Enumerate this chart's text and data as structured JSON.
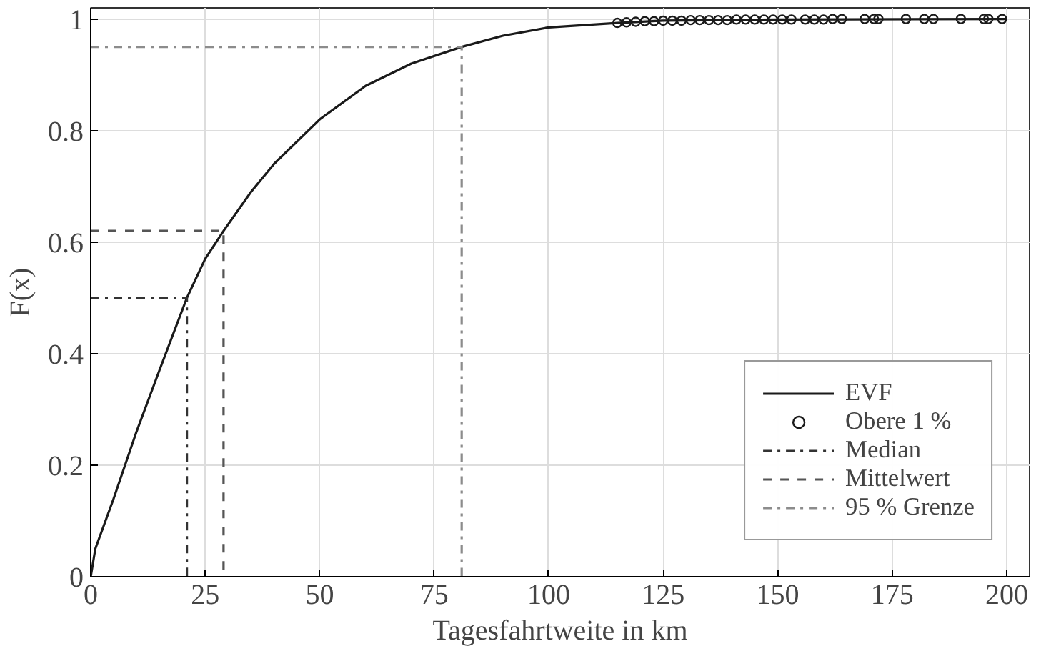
{
  "chart_data": {
    "type": "line",
    "xlabel": "Tagesfahrtweite in km",
    "ylabel": "F(x)",
    "xlim": [
      0,
      205
    ],
    "ylim": [
      0,
      1.02
    ],
    "xticks": [
      0,
      25,
      50,
      75,
      100,
      125,
      150,
      175,
      200
    ],
    "yticks": [
      0,
      0.2,
      0.4,
      0.6,
      0.8,
      1
    ],
    "grid": true,
    "legend": "bottom right",
    "series": [
      {
        "name": "EVF",
        "type": "line",
        "color": "#1a1a1a",
        "line_style": "solid",
        "x": [
          0,
          1,
          5,
          10,
          15,
          21,
          25,
          29,
          35,
          40,
          50,
          60,
          70,
          81,
          90,
          100,
          115,
          125,
          150,
          200
        ],
        "values": [
          0,
          0.05,
          0.14,
          0.26,
          0.37,
          0.5,
          0.57,
          0.62,
          0.69,
          0.74,
          0.82,
          0.88,
          0.92,
          0.95,
          0.97,
          0.985,
          0.993,
          0.997,
          0.999,
          1
        ]
      },
      {
        "name": "Obere 1 %",
        "type": "scatter",
        "marker": "circle",
        "color": "#1a1a1a",
        "x": [
          115,
          117,
          119,
          121,
          123,
          125,
          127,
          129,
          131,
          133,
          135,
          137,
          139,
          141,
          143,
          145,
          147,
          149,
          151,
          153,
          156,
          158,
          160,
          162,
          164,
          169,
          171,
          172,
          178,
          182,
          184,
          190,
          195,
          196,
          199
        ],
        "values": [
          0.993,
          0.994,
          0.995,
          0.996,
          0.996,
          0.997,
          0.997,
          0.997,
          0.998,
          0.998,
          0.998,
          0.998,
          0.998,
          0.999,
          0.999,
          0.999,
          0.999,
          0.999,
          0.999,
          0.999,
          0.999,
          0.999,
          0.999,
          1,
          1,
          1,
          1,
          1,
          1,
          1,
          1,
          1,
          1,
          1,
          1
        ]
      },
      {
        "name": "Median",
        "type": "line",
        "color": "#333333",
        "line_style": "dashdot",
        "x": [
          0,
          21,
          21
        ],
        "values": [
          0.5,
          0.5,
          0
        ]
      },
      {
        "name": "Mittelwert",
        "type": "line",
        "color": "#555555",
        "line_style": "dashed",
        "x": [
          0,
          29,
          29
        ],
        "values": [
          0.62,
          0.62,
          0
        ]
      },
      {
        "name": "95 % Grenze",
        "type": "line",
        "color": "#8c8c8c",
        "line_style": "dashdot",
        "x": [
          0,
          81,
          81
        ],
        "values": [
          0.95,
          0.95,
          0
        ]
      }
    ]
  }
}
